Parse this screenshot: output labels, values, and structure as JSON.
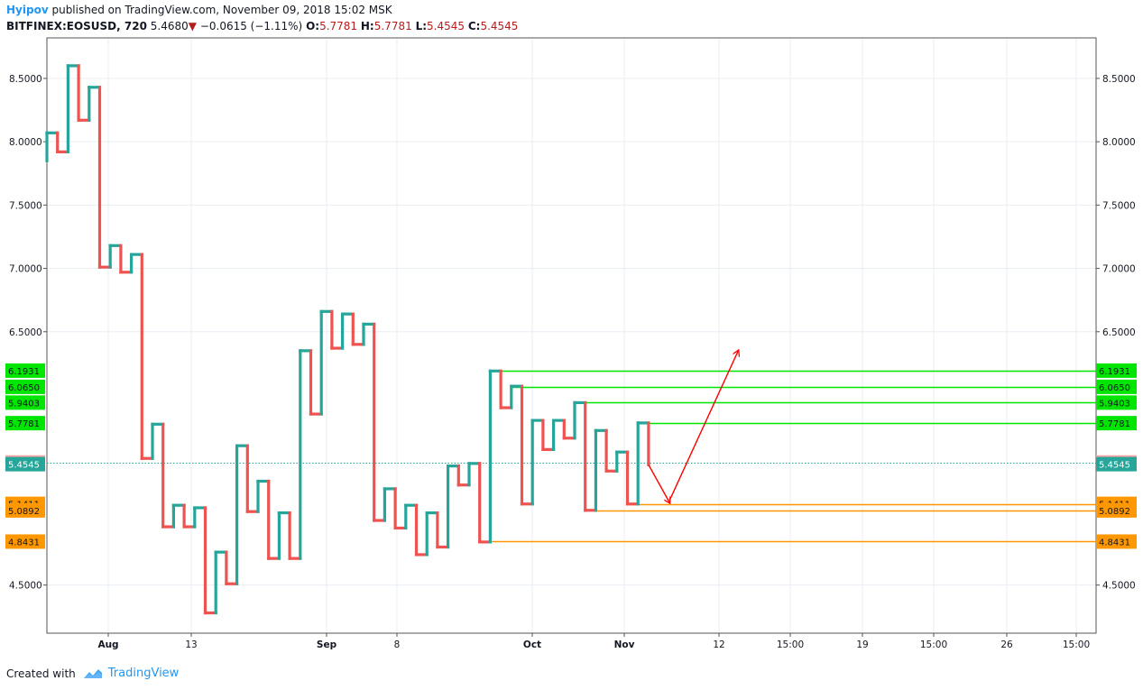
{
  "header": {
    "author": "Hyipov",
    "published_text": "published on TradingView.com, November 09, 2018 15:02 MSK",
    "symbol": "BITFINEX:EOSUSD, 720",
    "last": "5.4680",
    "change": "−0.0615 (−1.11%)",
    "open_label": "O:",
    "open": "5.7781",
    "high_label": "H:",
    "high": "5.7781",
    "low_label": "L:",
    "low": "5.4545",
    "close_label": "C:",
    "close": "5.4545",
    "down_arrow": "▼"
  },
  "footer": {
    "created_with": "Created with",
    "brand": "TradingView"
  },
  "colors": {
    "up": "#26a69a",
    "down": "#ef5350",
    "green_level": "#00e600",
    "orange_level": "#ff9800",
    "grid": "#e9eef3",
    "axis": "#555555",
    "arrow": "#ff0000",
    "last_price": "#f5a6a6",
    "current": "#26a69a"
  },
  "chart_data": {
    "type": "kagi",
    "title": "BITFINEX:EOSUSD, 720",
    "ylim": [
      4.12,
      8.82
    ],
    "y_ticks": [
      "4.5000",
      "6.5000",
      "7.0000",
      "7.5000",
      "8.0000",
      "8.5000"
    ],
    "x_ticks": [
      "Aug",
      "13",
      "Sep",
      "8",
      "Oct",
      "Nov",
      "12",
      "15:00",
      "19",
      "15:00",
      "26",
      "15:00"
    ],
    "kagi_path": [
      {
        "x": 0.0,
        "y": 7.85
      },
      {
        "x": 0.0,
        "y": 8.07
      },
      {
        "x": 1.0,
        "y": 8.07
      },
      {
        "x": 1.0,
        "y": 7.92
      },
      {
        "x": 2.0,
        "y": 7.92
      },
      {
        "x": 2.0,
        "y": 8.6
      },
      {
        "x": 3.0,
        "y": 8.6
      },
      {
        "x": 3.0,
        "y": 8.17
      },
      {
        "x": 4.0,
        "y": 8.17
      },
      {
        "x": 4.0,
        "y": 8.43
      },
      {
        "x": 5.0,
        "y": 8.43
      },
      {
        "x": 5.0,
        "y": 7.01
      },
      {
        "x": 6.0,
        "y": 7.01
      },
      {
        "x": 6.0,
        "y": 7.18
      },
      {
        "x": 7.0,
        "y": 7.18
      },
      {
        "x": 7.0,
        "y": 6.97
      },
      {
        "x": 8.0,
        "y": 6.97
      },
      {
        "x": 8.0,
        "y": 7.11
      },
      {
        "x": 9.0,
        "y": 7.11
      },
      {
        "x": 9.0,
        "y": 5.5
      },
      {
        "x": 10.0,
        "y": 5.5
      },
      {
        "x": 10.0,
        "y": 5.77
      },
      {
        "x": 11.0,
        "y": 5.77
      },
      {
        "x": 11.0,
        "y": 4.96
      },
      {
        "x": 12.0,
        "y": 4.96
      },
      {
        "x": 12.0,
        "y": 5.13
      },
      {
        "x": 13.0,
        "y": 5.13
      },
      {
        "x": 13.0,
        "y": 4.96
      },
      {
        "x": 14.0,
        "y": 4.96
      },
      {
        "x": 14.0,
        "y": 5.11
      },
      {
        "x": 15.0,
        "y": 5.11
      },
      {
        "x": 15.0,
        "y": 4.28
      },
      {
        "x": 16.0,
        "y": 4.28
      },
      {
        "x": 16.0,
        "y": 4.76
      },
      {
        "x": 17.0,
        "y": 4.76
      },
      {
        "x": 17.0,
        "y": 4.51
      },
      {
        "x": 18.0,
        "y": 4.51
      },
      {
        "x": 18.0,
        "y": 5.6
      },
      {
        "x": 19.0,
        "y": 5.6
      },
      {
        "x": 19.0,
        "y": 5.08
      },
      {
        "x": 20.0,
        "y": 5.08
      },
      {
        "x": 20.0,
        "y": 5.32
      },
      {
        "x": 21.0,
        "y": 5.32
      },
      {
        "x": 21.0,
        "y": 4.71
      },
      {
        "x": 22.0,
        "y": 4.71
      },
      {
        "x": 22.0,
        "y": 5.07
      },
      {
        "x": 23.0,
        "y": 5.07
      },
      {
        "x": 23.0,
        "y": 4.71
      },
      {
        "x": 24.0,
        "y": 4.71
      },
      {
        "x": 24.0,
        "y": 6.35
      },
      {
        "x": 25.0,
        "y": 6.35
      },
      {
        "x": 25.0,
        "y": 5.85
      },
      {
        "x": 26.0,
        "y": 5.85
      },
      {
        "x": 26.0,
        "y": 6.66
      },
      {
        "x": 27.0,
        "y": 6.66
      },
      {
        "x": 27.0,
        "y": 6.37
      },
      {
        "x": 28.0,
        "y": 6.37
      },
      {
        "x": 28.0,
        "y": 6.64
      },
      {
        "x": 29.0,
        "y": 6.64
      },
      {
        "x": 29.0,
        "y": 6.4
      },
      {
        "x": 30.0,
        "y": 6.4
      },
      {
        "x": 30.0,
        "y": 6.56
      },
      {
        "x": 31.0,
        "y": 6.56
      },
      {
        "x": 31.0,
        "y": 5.01
      },
      {
        "x": 32.0,
        "y": 5.01
      },
      {
        "x": 32.0,
        "y": 5.26
      },
      {
        "x": 33.0,
        "y": 5.26
      },
      {
        "x": 33.0,
        "y": 4.95
      },
      {
        "x": 34.0,
        "y": 4.95
      },
      {
        "x": 34.0,
        "y": 5.13
      },
      {
        "x": 35.0,
        "y": 5.13
      },
      {
        "x": 35.0,
        "y": 4.74
      },
      {
        "x": 36.0,
        "y": 4.74
      },
      {
        "x": 36.0,
        "y": 5.07
      },
      {
        "x": 37.0,
        "y": 5.07
      },
      {
        "x": 37.0,
        "y": 4.8
      },
      {
        "x": 38.0,
        "y": 4.8
      },
      {
        "x": 38.0,
        "y": 5.44
      },
      {
        "x": 39.0,
        "y": 5.44
      },
      {
        "x": 39.0,
        "y": 5.29
      },
      {
        "x": 40.0,
        "y": 5.29
      },
      {
        "x": 40.0,
        "y": 5.46
      },
      {
        "x": 41.0,
        "y": 5.46
      },
      {
        "x": 41.0,
        "y": 4.84
      },
      {
        "x": 42.0,
        "y": 4.84
      },
      {
        "x": 42.0,
        "y": 6.19
      },
      {
        "x": 43.0,
        "y": 6.19
      },
      {
        "x": 43.0,
        "y": 5.9
      },
      {
        "x": 44.0,
        "y": 5.9
      },
      {
        "x": 44.0,
        "y": 6.07
      },
      {
        "x": 45.0,
        "y": 6.07
      },
      {
        "x": 45.0,
        "y": 5.14
      },
      {
        "x": 46.0,
        "y": 5.14
      },
      {
        "x": 46.0,
        "y": 5.8
      },
      {
        "x": 47.0,
        "y": 5.8
      },
      {
        "x": 47.0,
        "y": 5.57
      },
      {
        "x": 48.0,
        "y": 5.57
      },
      {
        "x": 48.0,
        "y": 5.8
      },
      {
        "x": 49.0,
        "y": 5.8
      },
      {
        "x": 49.0,
        "y": 5.66
      },
      {
        "x": 50.0,
        "y": 5.66
      },
      {
        "x": 50.0,
        "y": 5.94
      },
      {
        "x": 51.0,
        "y": 5.94
      },
      {
        "x": 51.0,
        "y": 5.09
      },
      {
        "x": 52.0,
        "y": 5.09
      },
      {
        "x": 52.0,
        "y": 5.72
      },
      {
        "x": 53.0,
        "y": 5.72
      },
      {
        "x": 53.0,
        "y": 5.4
      },
      {
        "x": 54.0,
        "y": 5.4
      },
      {
        "x": 54.0,
        "y": 5.55
      },
      {
        "x": 55.0,
        "y": 5.55
      },
      {
        "x": 55.0,
        "y": 5.14
      },
      {
        "x": 56.0,
        "y": 5.14
      },
      {
        "x": 56.0,
        "y": 5.78
      },
      {
        "x": 57.0,
        "y": 5.78
      },
      {
        "x": 57.0,
        "y": 5.45
      }
    ],
    "levels": [
      {
        "value": 6.1931,
        "label": "6.1931",
        "color": "green_level",
        "start_x": 43.0
      },
      {
        "value": 6.065,
        "label": "6.0650",
        "color": "green_level",
        "start_x": 44.0
      },
      {
        "value": 5.9403,
        "label": "5.9403",
        "color": "green_level",
        "start_x": 51.0
      },
      {
        "value": 5.7781,
        "label": "5.7781",
        "color": "green_level",
        "start_x": 56.0
      },
      {
        "value": 5.1411,
        "label": "5.1411",
        "color": "orange_level",
        "start_x": 55.0
      },
      {
        "value": 5.0892,
        "label": "5.0892",
        "color": "orange_level",
        "start_x": 52.0
      },
      {
        "value": 4.8431,
        "label": "4.8431",
        "color": "orange_level",
        "start_x": 42.0
      }
    ],
    "last_price": {
      "value": 5.468,
      "label": "5.4680"
    },
    "current_price": {
      "value": 5.4545,
      "label": "5.4545"
    },
    "forecast_arrows": [
      {
        "from": {
          "x": 57.0,
          "y": 5.45
        },
        "to": {
          "x": 59.0,
          "y": 5.15
        }
      },
      {
        "from": {
          "x": 59.0,
          "y": 5.17
        },
        "to": {
          "x": 65.5,
          "y": 6.35
        }
      }
    ]
  }
}
